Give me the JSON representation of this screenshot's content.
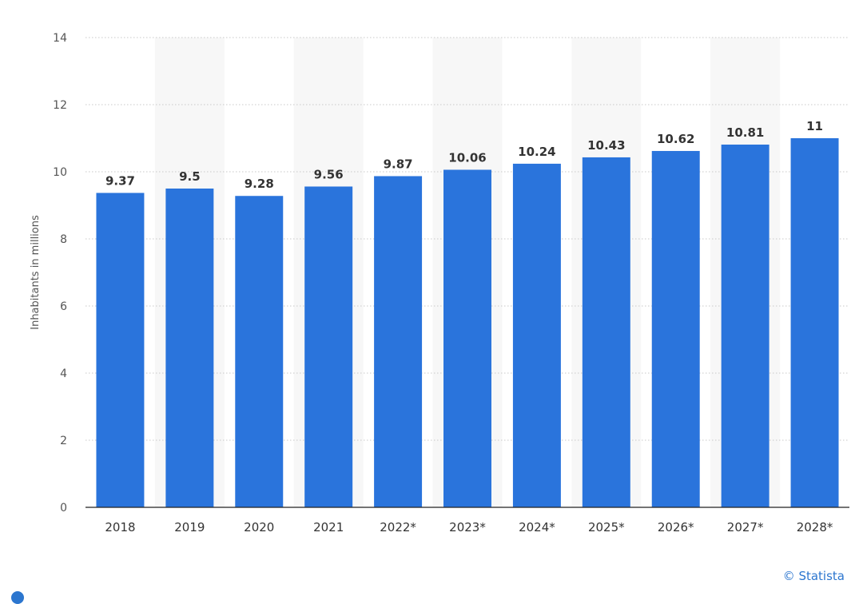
{
  "chart_data": {
    "type": "bar",
    "categories": [
      "2018",
      "2019",
      "2020",
      "2021",
      "2022*",
      "2023*",
      "2024*",
      "2025*",
      "2026*",
      "2027*",
      "2028*"
    ],
    "values": [
      9.37,
      9.5,
      9.28,
      9.56,
      9.87,
      10.06,
      10.24,
      10.43,
      10.62,
      10.81,
      11
    ],
    "value_labels": [
      "9.37",
      "9.5",
      "9.28",
      "9.56",
      "9.87",
      "10.06",
      "10.24",
      "10.43",
      "10.62",
      "10.81",
      "11"
    ],
    "ylabel": "Inhabitants in millions",
    "ylim": [
      0,
      14
    ],
    "yticks": [
      "0",
      "2",
      "4",
      "6",
      "8",
      "10",
      "12",
      "14"
    ],
    "grid": true,
    "bar_color": "#2a74dc",
    "band_color": "#f7f7f7"
  },
  "credit": "© Statista"
}
